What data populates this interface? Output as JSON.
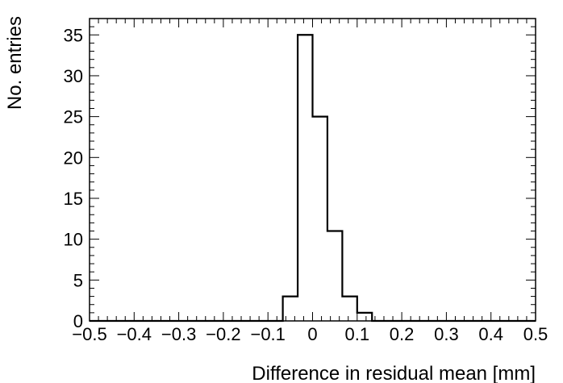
{
  "chart_data": {
    "type": "bar",
    "histogram": true,
    "title": "",
    "xlabel": "Difference in residual mean [mm]",
    "ylabel": "No. entries",
    "xlim": [
      -0.5,
      0.5
    ],
    "ylim": [
      0,
      37
    ],
    "x_ticks": [
      -0.5,
      -0.4,
      -0.3,
      -0.2,
      -0.1,
      0,
      0.1,
      0.2,
      0.3,
      0.4,
      0.5
    ],
    "x_tick_labels": [
      "−0.5",
      "−0.4",
      "−0.3",
      "−0.2",
      "−0.1",
      "0",
      "0.1",
      "0.2",
      "0.3",
      "0.4",
      "0.5"
    ],
    "y_ticks": [
      0,
      5,
      10,
      15,
      20,
      25,
      30,
      35
    ],
    "y_tick_labels": [
      "0",
      "5",
      "10",
      "15",
      "20",
      "25",
      "30",
      "35"
    ],
    "bin_edges": [
      -0.5,
      -0.4667,
      -0.4333,
      -0.4,
      -0.3667,
      -0.3333,
      -0.3,
      -0.2667,
      -0.2333,
      -0.2,
      -0.1667,
      -0.1333,
      -0.1,
      -0.0667,
      -0.0333,
      0,
      0.0333,
      0.0667,
      0.1,
      0.1333,
      0.1667,
      0.2,
      0.2333,
      0.2667,
      0.3,
      0.3333,
      0.3667,
      0.4,
      0.4333,
      0.4667,
      0.5
    ],
    "counts": [
      0,
      0,
      0,
      0,
      0,
      0,
      0,
      0,
      0,
      0,
      0,
      0,
      0,
      3,
      35,
      25,
      11,
      3,
      1,
      0,
      0,
      0,
      0,
      0,
      0,
      0,
      0,
      0,
      0,
      0
    ],
    "grid": false,
    "legend": "none",
    "line_color": "#000000"
  }
}
